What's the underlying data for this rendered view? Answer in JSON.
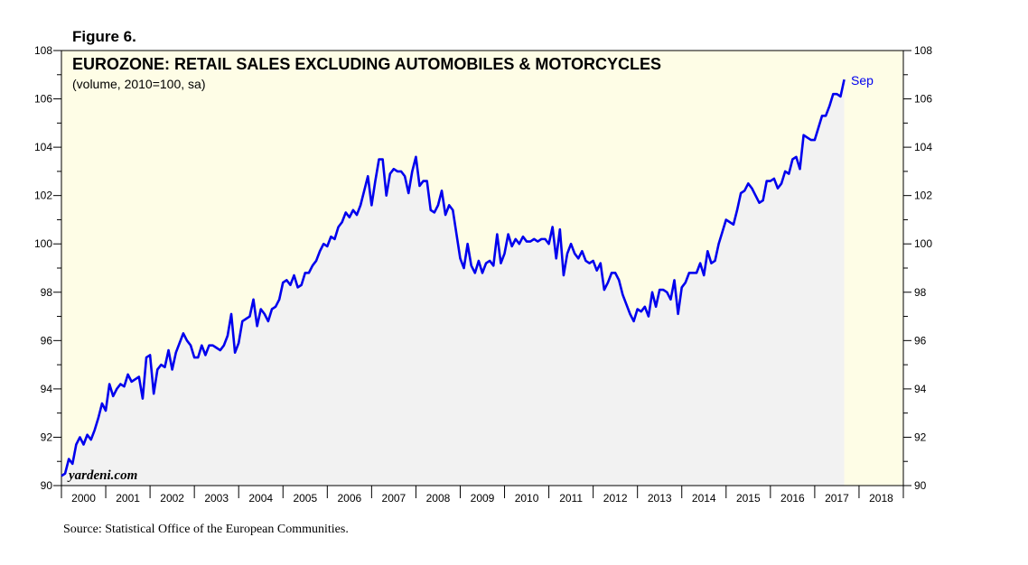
{
  "figure_label": "Figure 6.",
  "source": "Source: Statistical Office of the European Communities.",
  "watermark": "yardeni.com",
  "colors": {
    "plot_background": "#fefde6",
    "area_fill": "#f2f2f2",
    "line": "#0000ee",
    "axis": "#000000"
  },
  "chart_data": {
    "type": "line",
    "title": "EUROZONE: RETAIL SALES EXCLUDING AUTOMOBILES & MOTORCYCLES",
    "subtitle": "(volume, 2010=100, sa)",
    "xlabel": "",
    "ylabel": "",
    "ylim": [
      90,
      108
    ],
    "xlim": [
      2000,
      2019
    ],
    "y_ticks": [
      90,
      92,
      94,
      96,
      98,
      100,
      102,
      104,
      106,
      108
    ],
    "x_tick_labels": [
      "2000",
      "2001",
      "2002",
      "2003",
      "2004",
      "2005",
      "2006",
      "2007",
      "2008",
      "2009",
      "2010",
      "2011",
      "2012",
      "2013",
      "2014",
      "2015",
      "2016",
      "2017",
      "2018"
    ],
    "end_annotation": "Sep",
    "series": [
      {
        "name": "Retail sales excluding automobiles & motorcycles",
        "start": 2000.0,
        "step": 0.08333,
        "values": [
          90.4,
          90.5,
          91.1,
          90.9,
          91.7,
          92.0,
          91.7,
          92.1,
          91.9,
          92.3,
          92.8,
          93.4,
          93.1,
          94.2,
          93.7,
          94.0,
          94.2,
          94.1,
          94.6,
          94.3,
          94.4,
          94.5,
          93.6,
          95.3,
          95.4,
          93.8,
          94.8,
          95.0,
          94.9,
          95.6,
          94.8,
          95.5,
          95.9,
          96.3,
          96.0,
          95.8,
          95.3,
          95.3,
          95.8,
          95.4,
          95.8,
          95.8,
          95.7,
          95.6,
          95.8,
          96.2,
          97.1,
          95.5,
          95.9,
          96.8,
          96.9,
          97.0,
          97.7,
          96.6,
          97.3,
          97.1,
          96.8,
          97.3,
          97.4,
          97.7,
          98.4,
          98.5,
          98.3,
          98.7,
          98.2,
          98.3,
          98.8,
          98.8,
          99.1,
          99.3,
          99.7,
          100.0,
          99.9,
          100.3,
          100.2,
          100.7,
          100.9,
          101.3,
          101.1,
          101.4,
          101.2,
          101.6,
          102.2,
          102.8,
          101.6,
          102.6,
          103.5,
          103.5,
          102.0,
          102.9,
          103.1,
          103.0,
          103.0,
          102.8,
          102.1,
          103.0,
          103.6,
          102.4,
          102.6,
          102.6,
          101.4,
          101.3,
          101.6,
          102.2,
          101.2,
          101.6,
          101.4,
          100.4,
          99.4,
          99.0,
          100.0,
          99.1,
          98.8,
          99.3,
          98.8,
          99.2,
          99.3,
          99.1,
          100.4,
          99.2,
          99.6,
          100.4,
          99.9,
          100.2,
          100.0,
          100.3,
          100.1,
          100.1,
          100.2,
          100.1,
          100.2,
          100.2,
          100.0,
          100.7,
          99.4,
          100.6,
          98.7,
          99.6,
          100.0,
          99.6,
          99.4,
          99.7,
          99.3,
          99.2,
          99.3,
          98.9,
          99.2,
          98.1,
          98.4,
          98.8,
          98.8,
          98.5,
          97.9,
          97.5,
          97.1,
          96.8,
          97.3,
          97.2,
          97.4,
          97.0,
          98.0,
          97.4,
          98.1,
          98.1,
          98.0,
          97.7,
          98.5,
          97.1,
          98.2,
          98.4,
          98.8,
          98.8,
          98.8,
          99.2,
          98.7,
          99.7,
          99.2,
          99.3,
          100.0,
          100.5,
          101.0,
          100.9,
          100.8,
          101.4,
          102.1,
          102.2,
          102.5,
          102.3,
          102.0,
          101.7,
          101.8,
          102.6,
          102.6,
          102.7,
          102.3,
          102.5,
          103.0,
          102.9,
          103.5,
          103.6,
          103.1,
          104.5,
          104.4,
          104.3,
          104.3,
          104.8,
          105.3,
          105.3,
          105.7,
          106.2,
          106.2,
          106.1,
          106.8
        ]
      }
    ]
  }
}
